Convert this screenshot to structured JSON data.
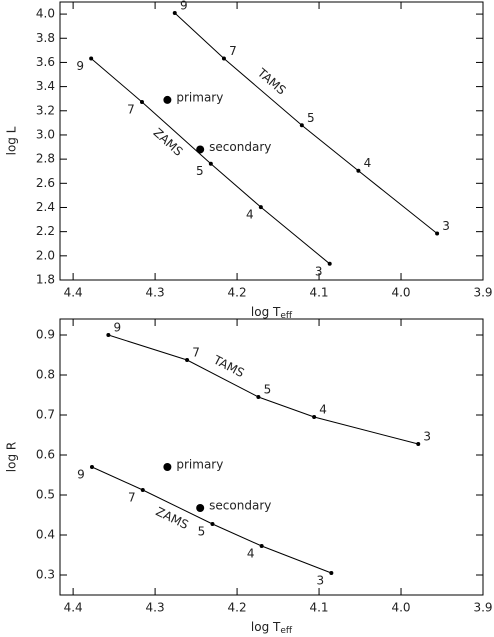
{
  "chart_data": [
    {
      "type": "line",
      "xlabel": "log T",
      "xlabel_subscript": "eff",
      "ylabel": "log L",
      "xlim": [
        4.416,
        3.9
      ],
      "xticks": [
        4.4,
        4.3,
        4.2,
        4.1,
        {
          "value": 4.0,
          "label": "4.0"
        },
        3.9
      ],
      "ylim": [
        1.8,
        4.1
      ],
      "yticks": [
        1.8,
        {
          "value": 2.0,
          "label": "2.0"
        },
        2.2,
        2.4,
        2.6,
        2.8,
        {
          "value": 3.0,
          "label": "3.0"
        },
        3.2,
        3.4,
        3.6,
        3.8,
        {
          "value": 4.0,
          "label": "4.0"
        }
      ],
      "color": "#000000",
      "series": [
        {
          "name": "ZAMS",
          "x": [
            4.378,
            4.316,
            4.232,
            4.171,
            4.087
          ],
          "values": [
            3.633,
            3.273,
            2.762,
            2.403,
            1.934
          ],
          "point_labels": [
            9,
            7,
            5,
            4,
            3
          ]
        },
        {
          "name": "TAMS",
          "x": [
            4.276,
            4.216,
            4.121,
            4.052,
            3.956
          ],
          "values": [
            4.009,
            3.633,
            3.08,
            2.704,
            2.185
          ],
          "point_labels": [
            9,
            7,
            5,
            4,
            3
          ]
        }
      ],
      "stars": [
        {
          "name": "primary",
          "x": 4.285,
          "y": 3.29
        },
        {
          "name": "secondary",
          "x": 4.245,
          "y": 2.88
        }
      ]
    },
    {
      "type": "line",
      "xlabel": "log T",
      "xlabel_subscript": "eff",
      "ylabel": "log R",
      "xlim": [
        4.416,
        3.9
      ],
      "xticks": [
        4.4,
        4.3,
        4.2,
        4.1,
        {
          "value": 4.0,
          "label": "4.0"
        },
        3.9
      ],
      "ylim": [
        0.25,
        0.94
      ],
      "yticks": [
        0.3,
        0.4,
        0.5,
        0.6,
        0.7,
        0.8,
        0.9
      ],
      "color": "#000000",
      "series": [
        {
          "name": "TAMS",
          "x": [
            4.357,
            4.261,
            4.174,
            4.106,
            3.979
          ],
          "values": [
            0.9,
            0.8375,
            0.745,
            0.695,
            0.6275
          ],
          "point_labels": [
            9,
            7,
            5,
            4,
            3
          ]
        },
        {
          "name": "ZAMS",
          "x": [
            4.377,
            4.315,
            4.23,
            4.17,
            4.085
          ],
          "values": [
            0.57,
            0.5125,
            0.4275,
            0.3725,
            0.305
          ],
          "point_labels": [
            9,
            7,
            5,
            4,
            3
          ]
        }
      ],
      "stars": [
        {
          "name": "primary",
          "x": 4.285,
          "y": 0.57
        },
        {
          "name": "secondary",
          "x": 4.245,
          "y": 0.4675
        }
      ]
    }
  ]
}
